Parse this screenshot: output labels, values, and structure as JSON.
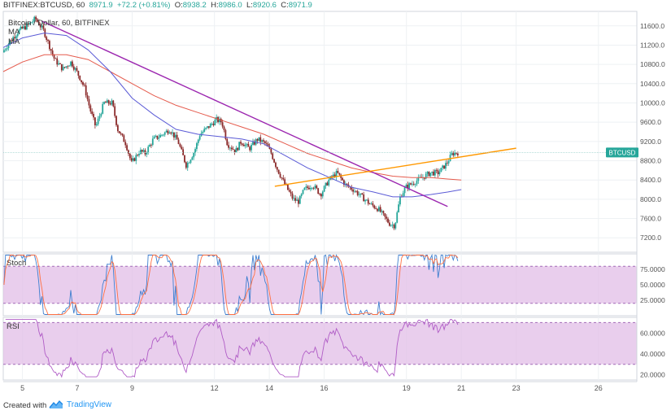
{
  "header": {
    "symbol": "BITFINEX:BTCUSD, 60",
    "last": "8971.9",
    "change": "+72.2 (+0.81%)",
    "o_label": "O:",
    "o": "8938.2",
    "h_label": "H:",
    "h": "8986.0",
    "l_label": "L:",
    "l": "8920.6",
    "c_label": "C:",
    "c": "8971.9",
    "legend_title": "Bitcoin / Dollar, 60, BITFINEX",
    "ma1": "MA",
    "ma2": "MA"
  },
  "panes": {
    "stoch_label": "Stoch",
    "rsi_label": "RSI"
  },
  "footer": {
    "created_with": "Created with",
    "brand": "TradingView"
  },
  "colors": {
    "bull": "#26a69a",
    "bear": "#8b2a2a",
    "ma_fast": "#5b5bd6",
    "ma_slow": "#e55b4d",
    "trend_down": "#9c27b0",
    "trend_up": "#ff9800",
    "osc_band": "#e1bee7",
    "stoch_k": "#3f7fcf",
    "stoch_d": "#ff7043",
    "rsi_line": "#b05cc6",
    "price_tag": "#26a69a"
  },
  "chart_data": {
    "type": "line",
    "title": "Bitcoin / Dollar, 60, BITFINEX",
    "x_ticks": [
      "5",
      "7",
      "9",
      "12",
      "14",
      "16",
      "19",
      "21",
      "23",
      "26"
    ],
    "x_tick_days": [
      5,
      7,
      9,
      12,
      14,
      16,
      19,
      21,
      23,
      26
    ],
    "x_range_days": [
      4.3,
      27.4
    ],
    "price_axis": {
      "ylim": [
        6900,
        11900
      ],
      "ticks": [
        7200,
        7600,
        8000,
        8400,
        8800,
        9200,
        9600,
        10000,
        10400,
        10800,
        11200,
        11600
      ],
      "tick_labels": [
        "7200.0",
        "7600.0",
        "8000.0",
        "8400.0",
        "8800.0",
        "9200.0",
        "9600.0",
        "10000.0",
        "10400.0",
        "10800.0",
        "11200.0",
        "11600.0"
      ],
      "current_price": 8971.9,
      "current_label": "BTCUSD"
    },
    "price_series": {
      "name": "BTCUSD",
      "points": [
        [
          4.3,
          11050
        ],
        [
          4.6,
          11300
        ],
        [
          4.9,
          11500
        ],
        [
          5.2,
          11600
        ],
        [
          5.5,
          11750
        ],
        [
          5.8,
          11500
        ],
        [
          6.0,
          11200
        ],
        [
          6.2,
          10900
        ],
        [
          6.5,
          10700
        ],
        [
          6.8,
          10850
        ],
        [
          7.1,
          10550
        ],
        [
          7.3,
          10300
        ],
        [
          7.5,
          9850
        ],
        [
          7.7,
          9500
        ],
        [
          8.0,
          10000
        ],
        [
          8.3,
          10000
        ],
        [
          8.5,
          9450
        ],
        [
          8.8,
          9150
        ],
        [
          9.0,
          8750
        ],
        [
          9.3,
          9000
        ],
        [
          9.5,
          8950
        ],
        [
          9.8,
          9250
        ],
        [
          10.0,
          9300
        ],
        [
          10.4,
          9450
        ],
        [
          10.7,
          9200
        ],
        [
          11.0,
          8700
        ],
        [
          11.3,
          9000
        ],
        [
          11.5,
          9350
        ],
        [
          11.8,
          9500
        ],
        [
          12.1,
          9650
        ],
        [
          12.3,
          9600
        ],
        [
          12.5,
          9150
        ],
        [
          12.8,
          9000
        ],
        [
          13.0,
          9200
        ],
        [
          13.3,
          9050
        ],
        [
          13.6,
          9250
        ],
        [
          13.9,
          9150
        ],
        [
          14.1,
          8950
        ],
        [
          14.3,
          8650
        ],
        [
          14.6,
          8300
        ],
        [
          14.9,
          8000
        ],
        [
          15.1,
          7950
        ],
        [
          15.3,
          8200
        ],
        [
          15.6,
          8300
        ],
        [
          15.9,
          8100
        ],
        [
          16.2,
          8400
        ],
        [
          16.5,
          8550
        ],
        [
          16.8,
          8300
        ],
        [
          17.1,
          8200
        ],
        [
          17.4,
          8050
        ],
        [
          17.7,
          7900
        ],
        [
          18.0,
          7800
        ],
        [
          18.2,
          7650
        ],
        [
          18.4,
          7500
        ],
        [
          18.6,
          7450
        ],
        [
          18.8,
          8050
        ],
        [
          19.0,
          8250
        ],
        [
          19.3,
          8350
        ],
        [
          19.6,
          8450
        ],
        [
          19.9,
          8550
        ],
        [
          20.2,
          8550
        ],
        [
          20.5,
          8750
        ],
        [
          20.7,
          8950
        ],
        [
          20.9,
          8972
        ]
      ]
    },
    "ma_fast": {
      "name": "MA",
      "points": [
        [
          4.3,
          11150
        ],
        [
          5.0,
          11350
        ],
        [
          5.8,
          11450
        ],
        [
          6.6,
          11400
        ],
        [
          7.4,
          11100
        ],
        [
          8.2,
          10650
        ],
        [
          9.0,
          10100
        ],
        [
          9.8,
          9750
        ],
        [
          10.6,
          9450
        ],
        [
          11.4,
          9350
        ],
        [
          12.2,
          9300
        ],
        [
          13.0,
          9250
        ],
        [
          13.8,
          9150
        ],
        [
          14.6,
          8900
        ],
        [
          15.4,
          8650
        ],
        [
          16.2,
          8450
        ],
        [
          17.0,
          8250
        ],
        [
          17.8,
          8150
        ],
        [
          18.5,
          8050
        ],
        [
          19.2,
          8050
        ],
        [
          19.9,
          8100
        ],
        [
          20.5,
          8150
        ],
        [
          21.0,
          8200
        ]
      ]
    },
    "ma_slow": {
      "name": "MA",
      "points": [
        [
          4.3,
          10650
        ],
        [
          5.0,
          10850
        ],
        [
          5.8,
          11000
        ],
        [
          6.6,
          11000
        ],
        [
          7.4,
          10900
        ],
        [
          8.2,
          10650
        ],
        [
          9.0,
          10400
        ],
        [
          9.8,
          10150
        ],
        [
          10.6,
          9950
        ],
        [
          11.4,
          9800
        ],
        [
          12.2,
          9650
        ],
        [
          13.0,
          9500
        ],
        [
          13.8,
          9350
        ],
        [
          14.6,
          9150
        ],
        [
          15.4,
          8950
        ],
        [
          16.2,
          8800
        ],
        [
          17.0,
          8650
        ],
        [
          17.8,
          8550
        ],
        [
          18.5,
          8480
        ],
        [
          19.2,
          8450
        ],
        [
          19.9,
          8450
        ],
        [
          20.5,
          8420
        ],
        [
          21.0,
          8400
        ]
      ]
    },
    "trendline_down": {
      "from": [
        5.7,
        11700
      ],
      "to": [
        20.5,
        7850
      ]
    },
    "trendline_up": {
      "from": [
        14.2,
        8270
      ],
      "to": [
        23.0,
        9060
      ]
    },
    "stoch": {
      "ticks": [
        25,
        50,
        75
      ],
      "tick_labels": [
        "25.0000",
        "50.0000",
        "75.0000"
      ],
      "band": [
        20,
        80
      ],
      "ylim": [
        0,
        100
      ]
    },
    "rsi": {
      "ticks": [
        20,
        40,
        60
      ],
      "tick_labels": [
        "20.0000",
        "40.0000",
        "60.0000"
      ],
      "band": [
        30,
        70
      ],
      "ylim": [
        15,
        75
      ]
    }
  }
}
